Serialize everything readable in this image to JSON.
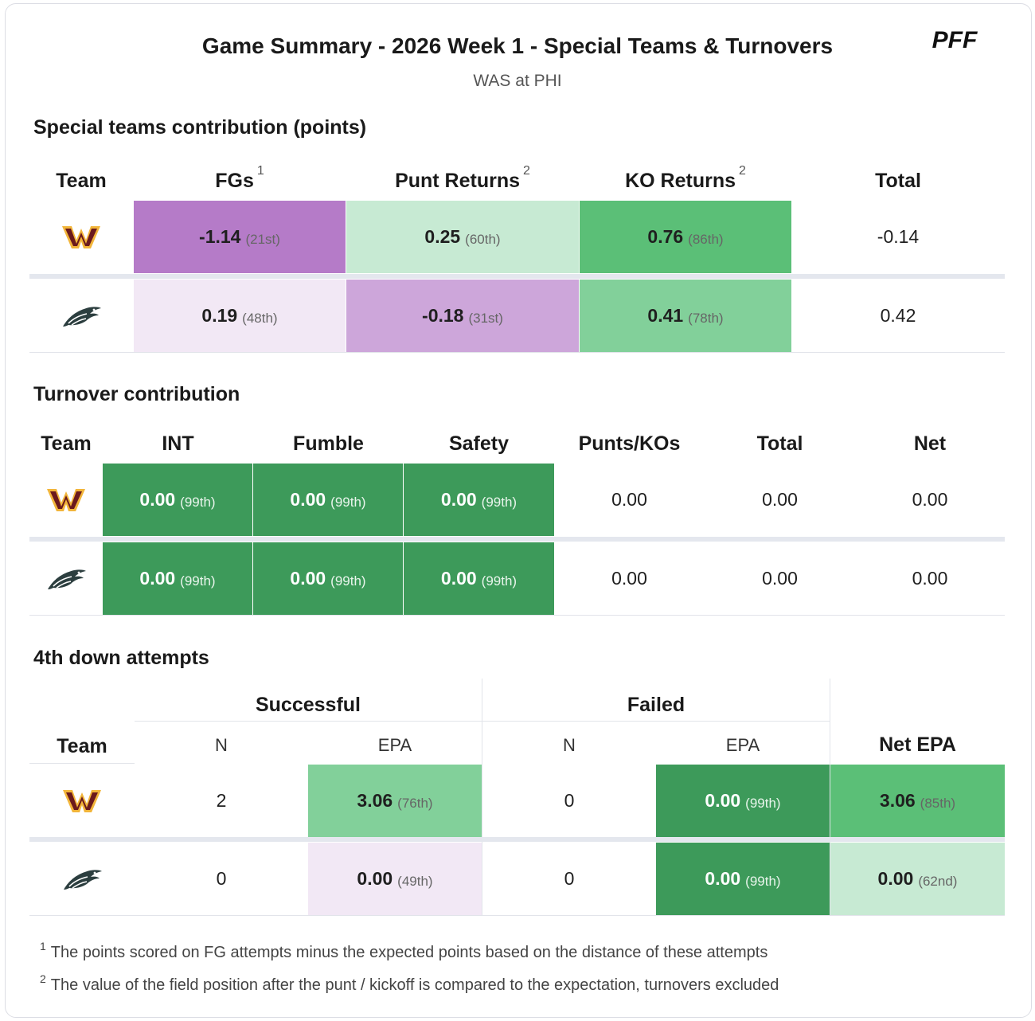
{
  "header": {
    "title": "Game Summary - 2026 Week 1 - Special Teams & Turnovers",
    "subtitle": "WAS at PHI",
    "brand": "PFF"
  },
  "special_teams": {
    "title": "Special teams contribution (points)",
    "columns": [
      "Team",
      "FGs",
      "Punt Returns",
      "KO Returns",
      "Total"
    ],
    "column_notes": [
      "",
      "1",
      "2",
      "2",
      ""
    ],
    "rows": [
      {
        "team": "WAS",
        "logo": "commanders-logo-icon",
        "fgs": {
          "value": "-1.14",
          "rank": "(21st)"
        },
        "punt": {
          "value": "0.25",
          "rank": "(60th)"
        },
        "ko": {
          "value": "0.76",
          "rank": "(86th)"
        },
        "total": "-0.14"
      },
      {
        "team": "PHI",
        "logo": "eagles-logo-icon",
        "fgs": {
          "value": "0.19",
          "rank": "(48th)"
        },
        "punt": {
          "value": "-0.18",
          "rank": "(31st)"
        },
        "ko": {
          "value": "0.41",
          "rank": "(78th)"
        },
        "total": "0.42"
      }
    ]
  },
  "turnovers": {
    "title": "Turnover contribution",
    "columns": [
      "Team",
      "INT",
      "Fumble",
      "Safety",
      "Punts/KOs",
      "Total",
      "Net"
    ],
    "rows": [
      {
        "team": "WAS",
        "int": {
          "value": "0.00",
          "rank": "(99th)"
        },
        "fumble": {
          "value": "0.00",
          "rank": "(99th)"
        },
        "safety": {
          "value": "0.00",
          "rank": "(99th)"
        },
        "punts": "0.00",
        "total": "0.00",
        "net": "0.00"
      },
      {
        "team": "PHI",
        "int": {
          "value": "0.00",
          "rank": "(99th)"
        },
        "fumble": {
          "value": "0.00",
          "rank": "(99th)"
        },
        "safety": {
          "value": "0.00",
          "rank": "(99th)"
        },
        "punts": "0.00",
        "total": "0.00",
        "net": "0.00"
      }
    ]
  },
  "fourth_down": {
    "title": "4th down attempts",
    "groups": [
      "Successful",
      "Failed"
    ],
    "columns": [
      "Team",
      "N",
      "EPA",
      "N",
      "EPA",
      "Net EPA"
    ],
    "rows": [
      {
        "team": "WAS",
        "succ_n": "2",
        "succ_epa": {
          "value": "3.06",
          "rank": "(76th)"
        },
        "fail_n": "0",
        "fail_epa": {
          "value": "0.00",
          "rank": "(99th)"
        },
        "net": {
          "value": "3.06",
          "rank": "(85th)"
        }
      },
      {
        "team": "PHI",
        "succ_n": "0",
        "succ_epa": {
          "value": "0.00",
          "rank": "(49th)"
        },
        "fail_n": "0",
        "fail_epa": {
          "value": "0.00",
          "rank": "(99th)"
        },
        "net": {
          "value": "0.00",
          "rank": "(62nd)"
        }
      }
    ]
  },
  "footnotes": [
    {
      "mark": "1",
      "text": "The points scored on FG attempts minus the expected points based on the distance of these attempts"
    },
    {
      "mark": "2",
      "text": "The value of the field position after the punt / kickoff is compared to the expectation, turnovers excluded"
    }
  ],
  "colors": {
    "purple_strong": "#b57bc8",
    "purple_mid": "#cda6da",
    "purple_light": "#f2e8f5",
    "green_dark": "#3d9a5a",
    "green_mid": "#5bbf77",
    "green_soft": "#82d09a",
    "green_light": "#c7ead3",
    "commanders_burgundy": "#6b1a1d",
    "commanders_gold": "#f2b53a"
  }
}
